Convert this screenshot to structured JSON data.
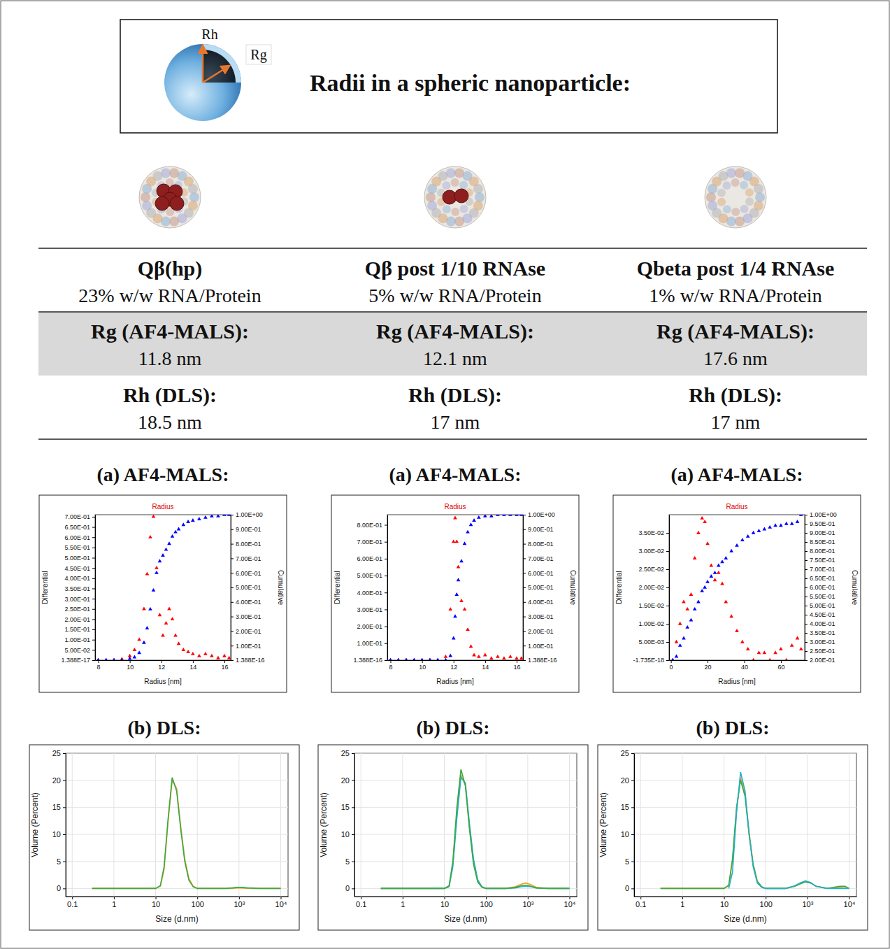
{
  "header": {
    "title": "Radii in a spheric nanoparticle:",
    "icon_labels": [
      "Rh",
      "Rg"
    ]
  },
  "table": {
    "columns": [
      {
        "sample": "Qβ(hp)",
        "composition": "23% w/w RNA/Protein",
        "rg_label": "Rg (AF4-MALS):",
        "rg": "11.8 nm",
        "rh_label": "Rh (DLS):",
        "rh": "18.5 nm"
      },
      {
        "sample": "Qβ post 1/10 RNAse",
        "composition": "5% w/w RNA/Protein",
        "rg_label": "Rg (AF4-MALS):",
        "rg": "12.1 nm",
        "rh_label": "Rh (DLS):",
        "rh": "17 nm"
      },
      {
        "sample": "Qbeta post 1/4 RNAse",
        "composition": "1% w/w RNA/Protein",
        "rg_label": "Rg (AF4-MALS):",
        "rg": "17.6 nm",
        "rh_label": "Rh (DLS):",
        "rh": "17 nm"
      }
    ]
  },
  "panels": {
    "a": "(a) AF4-MALS:",
    "b": "(b) DLS:"
  },
  "chart_data": [
    {
      "type": "scatter",
      "title": "Radius",
      "xlabel": "Radius [nm]",
      "ylabel": "Differential",
      "y2label": "Cumulative",
      "grid": false,
      "x": [
        8,
        8.5,
        9,
        9.5,
        10,
        10.3,
        10.6,
        10.9,
        11.1,
        11.3,
        11.5,
        11.7,
        11.9,
        12.1,
        12.3,
        12.5,
        12.7,
        12.9,
        13.1,
        13.4,
        13.7,
        14,
        14.4,
        14.8,
        15.2,
        15.6,
        16,
        16.3
      ],
      "series": [
        {
          "color": "#ff0000",
          "marker": "triangle",
          "values": [
            0,
            0,
            0,
            0.005,
            0.02,
            0.05,
            0.1,
            0.25,
            0.42,
            0.6,
            0.7,
            0.45,
            0.22,
            0.12,
            0.18,
            0.25,
            0.2,
            0.12,
            0.08,
            0.05,
            0.04,
            0.03,
            0.02,
            0.03,
            0.02,
            0.01,
            0.02,
            0.01
          ]
        },
        {
          "color": "#0000ff",
          "marker": "triangle",
          "axis": "y2",
          "values": [
            0,
            0,
            0,
            0,
            0.01,
            0.02,
            0.05,
            0.12,
            0.22,
            0.35,
            0.48,
            0.6,
            0.68,
            0.72,
            0.76,
            0.8,
            0.85,
            0.88,
            0.9,
            0.93,
            0.95,
            0.96,
            0.97,
            0.98,
            0.99,
            0.99,
            1.0,
            1.0
          ]
        }
      ],
      "xlim": [
        7.8,
        16.4
      ],
      "xticks": [
        8,
        10,
        12,
        14,
        16
      ],
      "ylim": [
        1.388e-17,
        0.71
      ],
      "yticks": [
        {
          "value": 1.388e-17,
          "label": "1.388E-17"
        },
        {
          "value": 0.05,
          "label": "5.00E-02"
        },
        {
          "value": 0.1,
          "label": "1.00E-01"
        },
        {
          "value": 0.15,
          "label": "1.50E-01"
        },
        {
          "value": 0.2,
          "label": "2.00E-01"
        },
        {
          "value": 0.25,
          "label": "2.50E-01"
        },
        {
          "value": 0.3,
          "label": "3.00E-01"
        },
        {
          "value": 0.35,
          "label": "3.50E-01"
        },
        {
          "value": 0.4,
          "label": "4.00E-01"
        },
        {
          "value": 0.45,
          "label": "4.50E-01"
        },
        {
          "value": 0.5,
          "label": "5.00E-01"
        },
        {
          "value": 0.55,
          "label": "5.50E-01"
        },
        {
          "value": 0.6,
          "label": "6.00E-01"
        },
        {
          "value": 0.65,
          "label": "6.50E-01"
        },
        {
          "value": 0.7,
          "label": "7.00E-01"
        }
      ],
      "y2lim": [
        1.388e-16,
        1.0
      ],
      "y2ticks": [
        {
          "value": 1.388e-16,
          "label": "1.388E-16"
        },
        {
          "value": 0.1,
          "label": "1.00E-01"
        },
        {
          "value": 0.2,
          "label": "2.00E-01"
        },
        {
          "value": 0.3,
          "label": "3.00E-01"
        },
        {
          "value": 0.4,
          "label": "4.00E-01"
        },
        {
          "value": 0.5,
          "label": "5.00E-01"
        },
        {
          "value": 0.6,
          "label": "6.00E-01"
        },
        {
          "value": 0.7,
          "label": "7.00E-01"
        },
        {
          "value": 0.8,
          "label": "8.00E-01"
        },
        {
          "value": 0.9,
          "label": "9.00E-01"
        },
        {
          "value": 1.0,
          "label": "1.00E+00"
        }
      ]
    },
    {
      "type": "scatter",
      "title": "Radius",
      "xlabel": "Radius [nm]",
      "ylabel": "Differential",
      "y2label": "Cumulative",
      "grid": false,
      "x": [
        8,
        8.5,
        9,
        9.5,
        10,
        10.5,
        11,
        11.5,
        11.8,
        12,
        12.1,
        12.2,
        12.3,
        12.5,
        12.7,
        12.9,
        13.1,
        13.3,
        13.6,
        14,
        14.4,
        14.8,
        15.2,
        15.6,
        16,
        16.3
      ],
      "series": [
        {
          "color": "#ff0000",
          "marker": "triangle",
          "values": [
            0,
            0,
            0,
            0,
            0,
            0,
            0,
            0.02,
            0.3,
            0.7,
            0.84,
            0.7,
            0.55,
            0.35,
            0.3,
            0.18,
            0.08,
            0.03,
            0.02,
            0.03,
            0.01,
            0.02,
            0.01,
            0.02,
            0.01,
            0.01
          ]
        },
        {
          "color": "#0000ff",
          "marker": "triangle",
          "axis": "y2",
          "values": [
            0,
            0,
            0,
            0,
            0,
            0,
            0,
            0,
            0.03,
            0.15,
            0.3,
            0.45,
            0.55,
            0.68,
            0.8,
            0.88,
            0.93,
            0.96,
            0.98,
            0.99,
            0.99,
            1,
            1,
            1,
            1,
            1
          ]
        }
      ],
      "xlim": [
        7.8,
        16.4
      ],
      "xticks": [
        8,
        10,
        12,
        14,
        16
      ],
      "ylim": [
        1.388e-16,
        0.86
      ],
      "yticks": [
        {
          "value": 1.388e-16,
          "label": "1.388E-16"
        },
        {
          "value": 0.1,
          "label": "1.00E-01"
        },
        {
          "value": 0.2,
          "label": "2.00E-01"
        },
        {
          "value": 0.3,
          "label": "3.00E-01"
        },
        {
          "value": 0.4,
          "label": "4.00E-01"
        },
        {
          "value": 0.5,
          "label": "5.00E-01"
        },
        {
          "value": 0.6,
          "label": "6.00E-01"
        },
        {
          "value": 0.7,
          "label": "7.00E-01"
        },
        {
          "value": 0.8,
          "label": "8.00E-01"
        }
      ],
      "y2lim": [
        1.388e-16,
        1.0
      ],
      "y2ticks": [
        {
          "value": 1.388e-16,
          "label": "1.388E-16"
        },
        {
          "value": 0.1,
          "label": "1.00E-01"
        },
        {
          "value": 0.2,
          "label": "2.00E-01"
        },
        {
          "value": 0.3,
          "label": "3.00E-01"
        },
        {
          "value": 0.4,
          "label": "4.00E-01"
        },
        {
          "value": 0.5,
          "label": "5.00E-01"
        },
        {
          "value": 0.6,
          "label": "6.00E-01"
        },
        {
          "value": 0.7,
          "label": "7.00E-01"
        },
        {
          "value": 0.8,
          "label": "8.00E-01"
        },
        {
          "value": 0.9,
          "label": "9.00E-01"
        },
        {
          "value": 1.0,
          "label": "1.00E+00"
        }
      ]
    },
    {
      "type": "scatter",
      "title": "Radius",
      "xlabel": "Radius [nm]",
      "ylabel": "Differential",
      "y2label": "Cumulative",
      "grid": false,
      "x": [
        1,
        3,
        5,
        7,
        9,
        11,
        13,
        15,
        17,
        18.5,
        20,
        22,
        24,
        26,
        28,
        30,
        33,
        36,
        39,
        42,
        45,
        48,
        51,
        54,
        57,
        60,
        63,
        66,
        69,
        71
      ],
      "series": [
        {
          "color": "#ff0000",
          "marker": "triangle",
          "values": [
            0,
            0.005,
            0.01,
            0.016,
            0.014,
            0.018,
            0.028,
            0.035,
            0.039,
            0.038,
            0.032,
            0.026,
            0.022,
            0.024,
            0.021,
            0.016,
            0.012,
            0.008,
            0.005,
            0.003,
            0,
            0.002,
            0.002,
            0,
            0.002,
            0.003,
            0,
            0.004,
            0.006,
            0.003
          ]
        },
        {
          "color": "#0000ff",
          "marker": "triangle",
          "axis": "y2",
          "values": [
            0.2,
            0.22,
            0.28,
            0.32,
            0.38,
            0.42,
            0.48,
            0.52,
            0.58,
            0.6,
            0.63,
            0.66,
            0.68,
            0.72,
            0.74,
            0.76,
            0.8,
            0.83,
            0.86,
            0.88,
            0.9,
            0.91,
            0.92,
            0.93,
            0.94,
            0.94,
            0.95,
            0.95,
            0.96,
            1.0
          ]
        }
      ],
      "xlim": [
        -1,
        73
      ],
      "xticks": [
        0,
        20,
        40,
        60
      ],
      "ylim": [
        -1.735e-18,
        0.04
      ],
      "yticks": [
        {
          "value": -1.735e-18,
          "label": "-1.735E-18"
        },
        {
          "value": 0.005,
          "label": "5.00E-03"
        },
        {
          "value": 0.01,
          "label": "1.00E-02"
        },
        {
          "value": 0.015,
          "label": "1.50E-02"
        },
        {
          "value": 0.02,
          "label": "2.00E-02"
        },
        {
          "value": 0.025,
          "label": "2.50E-02"
        },
        {
          "value": 0.03,
          "label": "3.00E-02"
        },
        {
          "value": 0.035,
          "label": "3.50E-02"
        }
      ],
      "y2lim": [
        0.2,
        1.0
      ],
      "y2ticks": [
        {
          "value": 0.2,
          "label": "2.00E-01"
        },
        {
          "value": 0.25,
          "label": "2.50E-01"
        },
        {
          "value": 0.3,
          "label": "3.00E-01"
        },
        {
          "value": 0.35,
          "label": "3.50E-01"
        },
        {
          "value": 0.4,
          "label": "4.00E-01"
        },
        {
          "value": 0.45,
          "label": "4.50E-01"
        },
        {
          "value": 0.5,
          "label": "5.00E-01"
        },
        {
          "value": 0.55,
          "label": "5.50E-01"
        },
        {
          "value": 0.6,
          "label": "6.00E-01"
        },
        {
          "value": 0.65,
          "label": "6.50E-01"
        },
        {
          "value": 0.7,
          "label": "7.00E-01"
        },
        {
          "value": 0.75,
          "label": "7.50E-01"
        },
        {
          "value": 0.8,
          "label": "8.00E-01"
        },
        {
          "value": 0.85,
          "label": "8.50E-01"
        },
        {
          "value": 0.9,
          "label": "9.00E-01"
        },
        {
          "value": 0.95,
          "label": "9.50E-01"
        },
        {
          "value": 1.0,
          "label": "1.00E+00"
        }
      ]
    },
    {
      "type": "line",
      "xlabel": "Size (d.nm)",
      "ylabel": "Volume (Percent)",
      "log": "x",
      "grid": true,
      "x": [
        0.3,
        1,
        5,
        10,
        13,
        16,
        20,
        25,
        32,
        40,
        50,
        63,
        80,
        100,
        150,
        300,
        500,
        700,
        900,
        1200,
        1600,
        3000,
        6000,
        8000,
        10000
      ],
      "series": [
        {
          "color": "#f0a020",
          "line_style": "solid",
          "values": [
            0,
            0,
            0,
            0,
            0.4,
            3.5,
            12.5,
            20,
            18.5,
            11.5,
            5.5,
            1.8,
            0.4,
            0,
            0,
            0,
            0,
            0,
            0.1,
            0.1,
            0,
            0,
            0,
            0,
            0
          ]
        },
        {
          "color": "#3aa845",
          "line_style": "solid",
          "values": [
            0,
            0,
            0,
            0,
            0.5,
            4,
            13,
            20.5,
            18,
            11,
            5,
            1.5,
            0.3,
            0,
            0,
            0,
            0,
            0.1,
            0.2,
            0.2,
            0.1,
            0,
            0,
            0,
            0
          ]
        }
      ],
      "xlim": [
        0.07,
        15000
      ],
      "xticks": [
        0.1,
        1,
        10,
        100,
        {
          "value": 1000,
          "label": "10³"
        },
        {
          "value": 10000,
          "label": "10⁴"
        }
      ],
      "ylim": [
        -1.5,
        25
      ],
      "yticks": [
        0,
        5,
        10,
        15,
        20,
        25
      ]
    },
    {
      "type": "line",
      "xlabel": "Size (d.nm)",
      "ylabel": "Volume (Percent)",
      "log": "x",
      "grid": true,
      "x": [
        0.3,
        1,
        5,
        10,
        13,
        16,
        20,
        25,
        32,
        40,
        50,
        63,
        80,
        100,
        150,
        300,
        500,
        700,
        900,
        1200,
        1600,
        3000,
        6000,
        8000,
        10000
      ],
      "series": [
        {
          "color": "#f0a020",
          "line_style": "solid",
          "values": [
            0,
            0,
            0,
            0,
            0.4,
            4.5,
            14,
            21,
            19,
            11.5,
            5,
            1.5,
            0.3,
            0,
            0,
            0,
            0.3,
            0.8,
            1.0,
            0.7,
            0.2,
            0,
            0,
            0,
            0
          ]
        },
        {
          "color": "#20b0c8",
          "line_style": "solid",
          "values": [
            0,
            0,
            0,
            0,
            0.3,
            4,
            13,
            20.5,
            19.5,
            12,
            5.5,
            1.6,
            0.3,
            0,
            0,
            0,
            0.1,
            0.3,
            0.4,
            0.3,
            0.1,
            0,
            0,
            0,
            0
          ]
        },
        {
          "color": "#3aa845",
          "line_style": "solid",
          "values": [
            0,
            0,
            0,
            0,
            0.5,
            5,
            15,
            22,
            19,
            11,
            4.5,
            1.2,
            0.2,
            0,
            0,
            0,
            0.2,
            0.5,
            0.6,
            0.4,
            0.1,
            0,
            0,
            0,
            0
          ]
        }
      ],
      "xlim": [
        0.07,
        15000
      ],
      "xticks": [
        0.1,
        1,
        10,
        100,
        {
          "value": 1000,
          "label": "10³"
        },
        {
          "value": 10000,
          "label": "10⁴"
        }
      ],
      "ylim": [
        -1.5,
        25
      ],
      "yticks": [
        0,
        5,
        10,
        15,
        20,
        25
      ]
    },
    {
      "type": "line",
      "xlabel": "Size (d.nm)",
      "ylabel": "Volume (Percent)",
      "log": "x",
      "grid": true,
      "x": [
        0.3,
        1,
        5,
        10,
        13,
        16,
        20,
        25,
        32,
        40,
        50,
        63,
        80,
        100,
        150,
        300,
        500,
        700,
        900,
        1200,
        1600,
        3000,
        6000,
        8000,
        10000
      ],
      "series": [
        {
          "color": "#f0a020",
          "line_style": "solid",
          "values": [
            0,
            0,
            0,
            0,
            0.5,
            5,
            14.5,
            20.5,
            17.5,
            10.5,
            4.5,
            1.3,
            0.3,
            0,
            0,
            0,
            0.4,
            1.0,
            1.3,
            1.0,
            0.4,
            0,
            0.2,
            0.3,
            0
          ]
        },
        {
          "color": "#3aa845",
          "line_style": "solid",
          "values": [
            0,
            0,
            0,
            0,
            0.6,
            5.5,
            15,
            20,
            17,
            10,
            4.5,
            1.3,
            0.3,
            0,
            0,
            0,
            0.4,
            0.9,
            1.2,
            1.0,
            0.4,
            0,
            0.4,
            0.4,
            0
          ]
        },
        {
          "color": "#20b0c8",
          "line_style": "solid",
          "values": [
            null,
            null,
            null,
            null,
            0,
            3,
            14,
            21.5,
            18,
            10,
            4,
            1,
            0.2,
            0,
            0,
            0,
            0.5,
            1.1,
            1.4,
            1.1,
            0.4,
            0,
            0,
            0,
            0
          ]
        }
      ],
      "xlim": [
        0.07,
        15000
      ],
      "xticks": [
        0.1,
        1,
        10,
        100,
        {
          "value": 1000,
          "label": "10³"
        },
        {
          "value": 10000,
          "label": "10⁴"
        }
      ],
      "ylim": [
        -1.5,
        25
      ],
      "yticks": [
        0,
        5,
        10,
        15,
        20,
        25
      ]
    }
  ]
}
